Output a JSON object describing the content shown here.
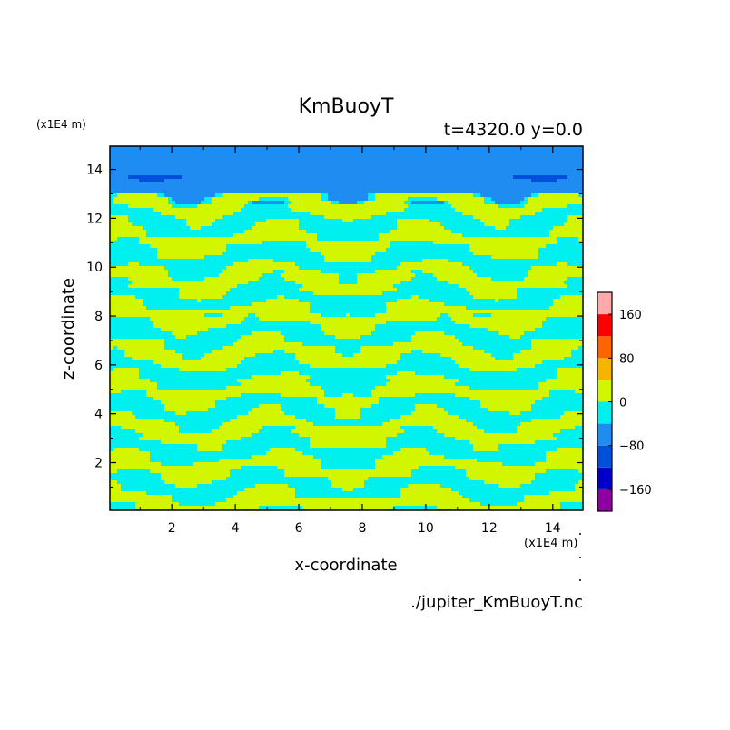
{
  "chart_data": {
    "type": "heatmap",
    "title": "KmBuoyT",
    "subtitle": "t=4320.0 y=0.0",
    "xlabel": "x-coordinate",
    "ylabel": "z-coordinate",
    "x_unit": "(x1E4 m)",
    "y_unit": "(x1E4 m)",
    "source_file": "./jupiter_KmBuoyT.nc",
    "xlim": [
      0.05,
      14.95
    ],
    "ylim": [
      0.05,
      14.95
    ],
    "x_ticks": [
      2,
      4,
      6,
      8,
      10,
      12,
      14
    ],
    "y_ticks": [
      2,
      4,
      6,
      8,
      10,
      12,
      14
    ],
    "colorbar": {
      "levels": [
        -200,
        -160,
        -120,
        -80,
        -40,
        0,
        40,
        80,
        120,
        160,
        200
      ],
      "colors": [
        "#8c00a0",
        "#0000c8",
        "#0050dc",
        "#1e8cf0",
        "#00f0f0",
        "#d2f500",
        "#f5b400",
        "#ff6400",
        "#ff0000",
        "#ffaaaa"
      ],
      "labels": [
        "160",
        "80",
        "0",
        "−80",
        "−160"
      ],
      "label_values": [
        160,
        80,
        0,
        -80,
        -160
      ]
    },
    "field_bands": [
      {
        "z": [
          14.35,
          14.95
        ],
        "min": -80,
        "max": -40
      },
      {
        "z": [
          13.1,
          14.35
        ],
        "min": -120,
        "max": -40
      },
      {
        "z": [
          12.6,
          13.1
        ],
        "min": -80,
        "max": 40
      },
      {
        "z": [
          4.0,
          12.6
        ],
        "min": -40,
        "max": 40
      },
      {
        "z": [
          0.05,
          4.0
        ],
        "min": -40,
        "max": 40
      }
    ]
  }
}
